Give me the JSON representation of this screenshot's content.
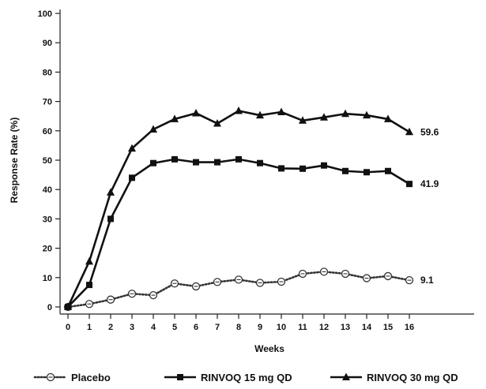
{
  "chart_data": {
    "type": "line",
    "xlabel": "Weeks",
    "ylabel": "Response Rate (%)",
    "xlim": [
      0,
      16
    ],
    "ylim": [
      0,
      100
    ],
    "x": [
      0,
      1,
      2,
      3,
      4,
      5,
      6,
      7,
      8,
      9,
      10,
      11,
      12,
      13,
      14,
      15,
      16
    ],
    "x_ticks": [
      0,
      1,
      2,
      3,
      4,
      5,
      6,
      7,
      8,
      9,
      10,
      11,
      12,
      13,
      14,
      15,
      16
    ],
    "y_ticks": [
      0,
      10,
      20,
      30,
      40,
      50,
      60,
      70,
      80,
      90,
      100
    ],
    "grid": false,
    "legend_position": "bottom",
    "series": [
      {
        "name": "Placebo",
        "line_style": "dotted",
        "marker": "open-circle",
        "color": "#333333",
        "values": [
          0,
          1,
          2.5,
          4.5,
          4,
          8,
          7,
          8.5,
          9.3,
          8.2,
          8.6,
          11.3,
          12,
          11.3,
          9.8,
          10.5,
          9.1
        ],
        "end_label": "9.1"
      },
      {
        "name": "RINVOQ 15 mg QD",
        "line_style": "solid",
        "marker": "square",
        "color": "#111111",
        "values": [
          0,
          7.5,
          30,
          44,
          49,
          50.3,
          49.3,
          49.3,
          50.3,
          49,
          47.2,
          47.1,
          48.2,
          46.3,
          45.9,
          46.3,
          41.9
        ],
        "end_label": "41.9"
      },
      {
        "name": "RINVOQ 30 mg QD",
        "line_style": "solid",
        "marker": "triangle",
        "color": "#111111",
        "values": [
          0,
          15.5,
          39,
          54,
          60.5,
          64,
          66,
          62.5,
          66.8,
          65.3,
          66.4,
          63.5,
          64.6,
          65.8,
          65.3,
          64,
          59.6
        ],
        "end_label": "59.6"
      }
    ]
  }
}
